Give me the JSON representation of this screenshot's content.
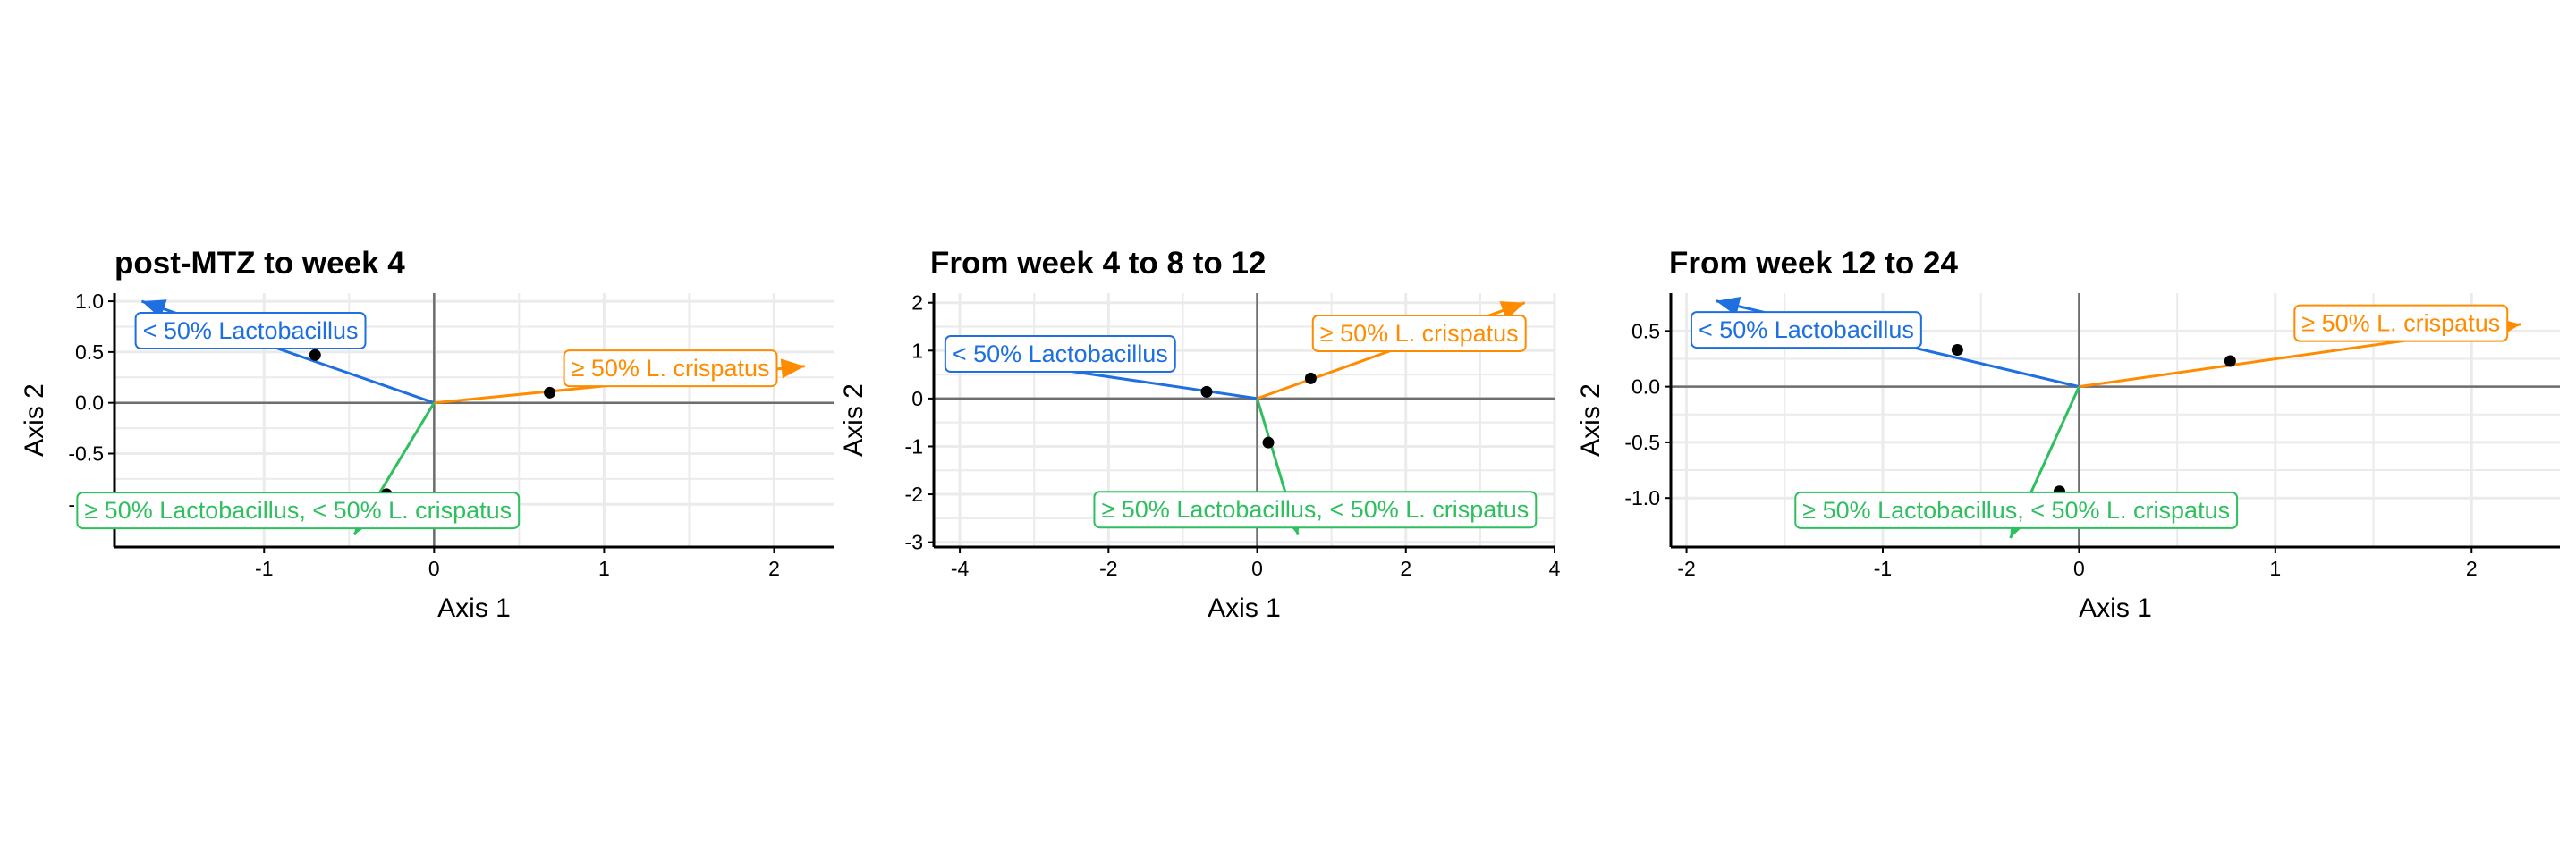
{
  "colors": {
    "lacto_low": "#1E6FE0",
    "crispatus_high": "#FF8C00",
    "lacto_high_crispatus_low": "#2EBF5F",
    "points": "#000000",
    "grid": "#EBEBEB",
    "zero_lines": "#6E6E6E",
    "axis": "#000000"
  },
  "chart_data": [
    {
      "type": "scatter",
      "title": "post-MTZ to week 4",
      "xlabel": "Axis 1",
      "ylabel": "Axis 2",
      "xlim": [
        -1.88,
        2.35
      ],
      "ylim": [
        -1.42,
        1.08
      ],
      "xticks": [
        -1,
        0,
        1,
        2
      ],
      "yticks": [
        1.0,
        0.5,
        0.0,
        -0.5,
        -1.0
      ],
      "xtick_labels": [
        "-1",
        "0",
        "1",
        "2"
      ],
      "ytick_labels": [
        "1.0",
        "0.5",
        "0.0",
        "-0.5",
        "-1.0"
      ],
      "grid": true,
      "points": [
        {
          "x": -0.7,
          "y": 0.47
        },
        {
          "x": 0.68,
          "y": 0.1
        },
        {
          "x": -0.28,
          "y": -0.9
        }
      ],
      "arrows": [
        {
          "label": "< 50% Lactobacillus",
          "color_key": "lacto_low",
          "x": -1.72,
          "y": 1.0,
          "label_x": -1.08,
          "label_y": 0.71
        },
        {
          "label": "≥ 50% L. crispatus",
          "color_key": "crispatus_high",
          "x": 2.18,
          "y": 0.36,
          "label_x": 1.39,
          "label_y": 0.34
        },
        {
          "label": "≥ 50% Lactobacillus, < 50% L. crispatus",
          "color_key": "lacto_high_crispatus_low",
          "x": -0.47,
          "y": -1.3,
          "label_x": -0.8,
          "label_y": -1.06
        }
      ]
    },
    {
      "type": "scatter",
      "title": "From week 4 to 8 to 12",
      "xlabel": "Axis 1",
      "ylabel": "Axis 2",
      "xlim": [
        -4.35,
        4.0
      ],
      "ylim": [
        -3.1,
        2.2
      ],
      "xticks": [
        -4,
        -2,
        0,
        2,
        4
      ],
      "yticks": [
        2,
        1,
        0,
        -1,
        -2,
        -3
      ],
      "xtick_labels": [
        "-4",
        "-2",
        "0",
        "2",
        "4"
      ],
      "ytick_labels": [
        "2",
        "1",
        "0",
        "-1",
        "-2",
        "-3"
      ],
      "grid": true,
      "points": [
        {
          "x": -0.68,
          "y": 0.14
        },
        {
          "x": 0.72,
          "y": 0.42
        },
        {
          "x": 0.15,
          "y": -0.92
        }
      ],
      "arrows": [
        {
          "label": "< 50% Lactobacillus",
          "color_key": "lacto_low",
          "x": -4.05,
          "y": 0.92,
          "label_x": -2.65,
          "label_y": 0.93
        },
        {
          "label": "≥ 50% L. crispatus",
          "color_key": "crispatus_high",
          "x": 3.6,
          "y": 2.0,
          "label_x": 2.18,
          "label_y": 1.36
        },
        {
          "label": "≥ 50% Lactobacillus, < 50% L. crispatus",
          "color_key": "lacto_high_crispatus_low",
          "x": 0.55,
          "y": -2.85,
          "label_x": 0.78,
          "label_y": -2.32
        }
      ]
    },
    {
      "type": "scatter",
      "title": "From week 12 to 24",
      "xlabel": "Axis 1",
      "ylabel": "Axis 2",
      "xlim": [
        -2.08,
        2.45
      ],
      "ylim": [
        -1.44,
        0.84
      ],
      "xticks": [
        -2,
        -1,
        0,
        1,
        2
      ],
      "yticks": [
        0.5,
        0.0,
        -0.5,
        -1.0
      ],
      "xtick_labels": [
        "-2",
        "-1",
        "0",
        "1",
        "2"
      ],
      "ytick_labels": [
        "0.5",
        "0.0",
        "-0.5",
        "-1.0"
      ],
      "grid": true,
      "points": [
        {
          "x": -0.62,
          "y": 0.33
        },
        {
          "x": 0.77,
          "y": 0.23
        },
        {
          "x": -0.1,
          "y": -0.94
        }
      ],
      "arrows": [
        {
          "label": "< 50% Lactobacillus",
          "color_key": "lacto_low",
          "x": -1.85,
          "y": 0.77,
          "label_x": -1.39,
          "label_y": 0.51
        },
        {
          "label": "≥ 50% L. crispatus",
          "color_key": "crispatus_high",
          "x": 2.25,
          "y": 0.56,
          "label_x": 1.64,
          "label_y": 0.57
        },
        {
          "label": "≥ 50% Lactobacillus, < 50% L. crispatus",
          "color_key": "lacto_high_crispatus_low",
          "x": -0.35,
          "y": -1.36,
          "label_x": -0.32,
          "label_y": -1.11
        }
      ]
    }
  ]
}
